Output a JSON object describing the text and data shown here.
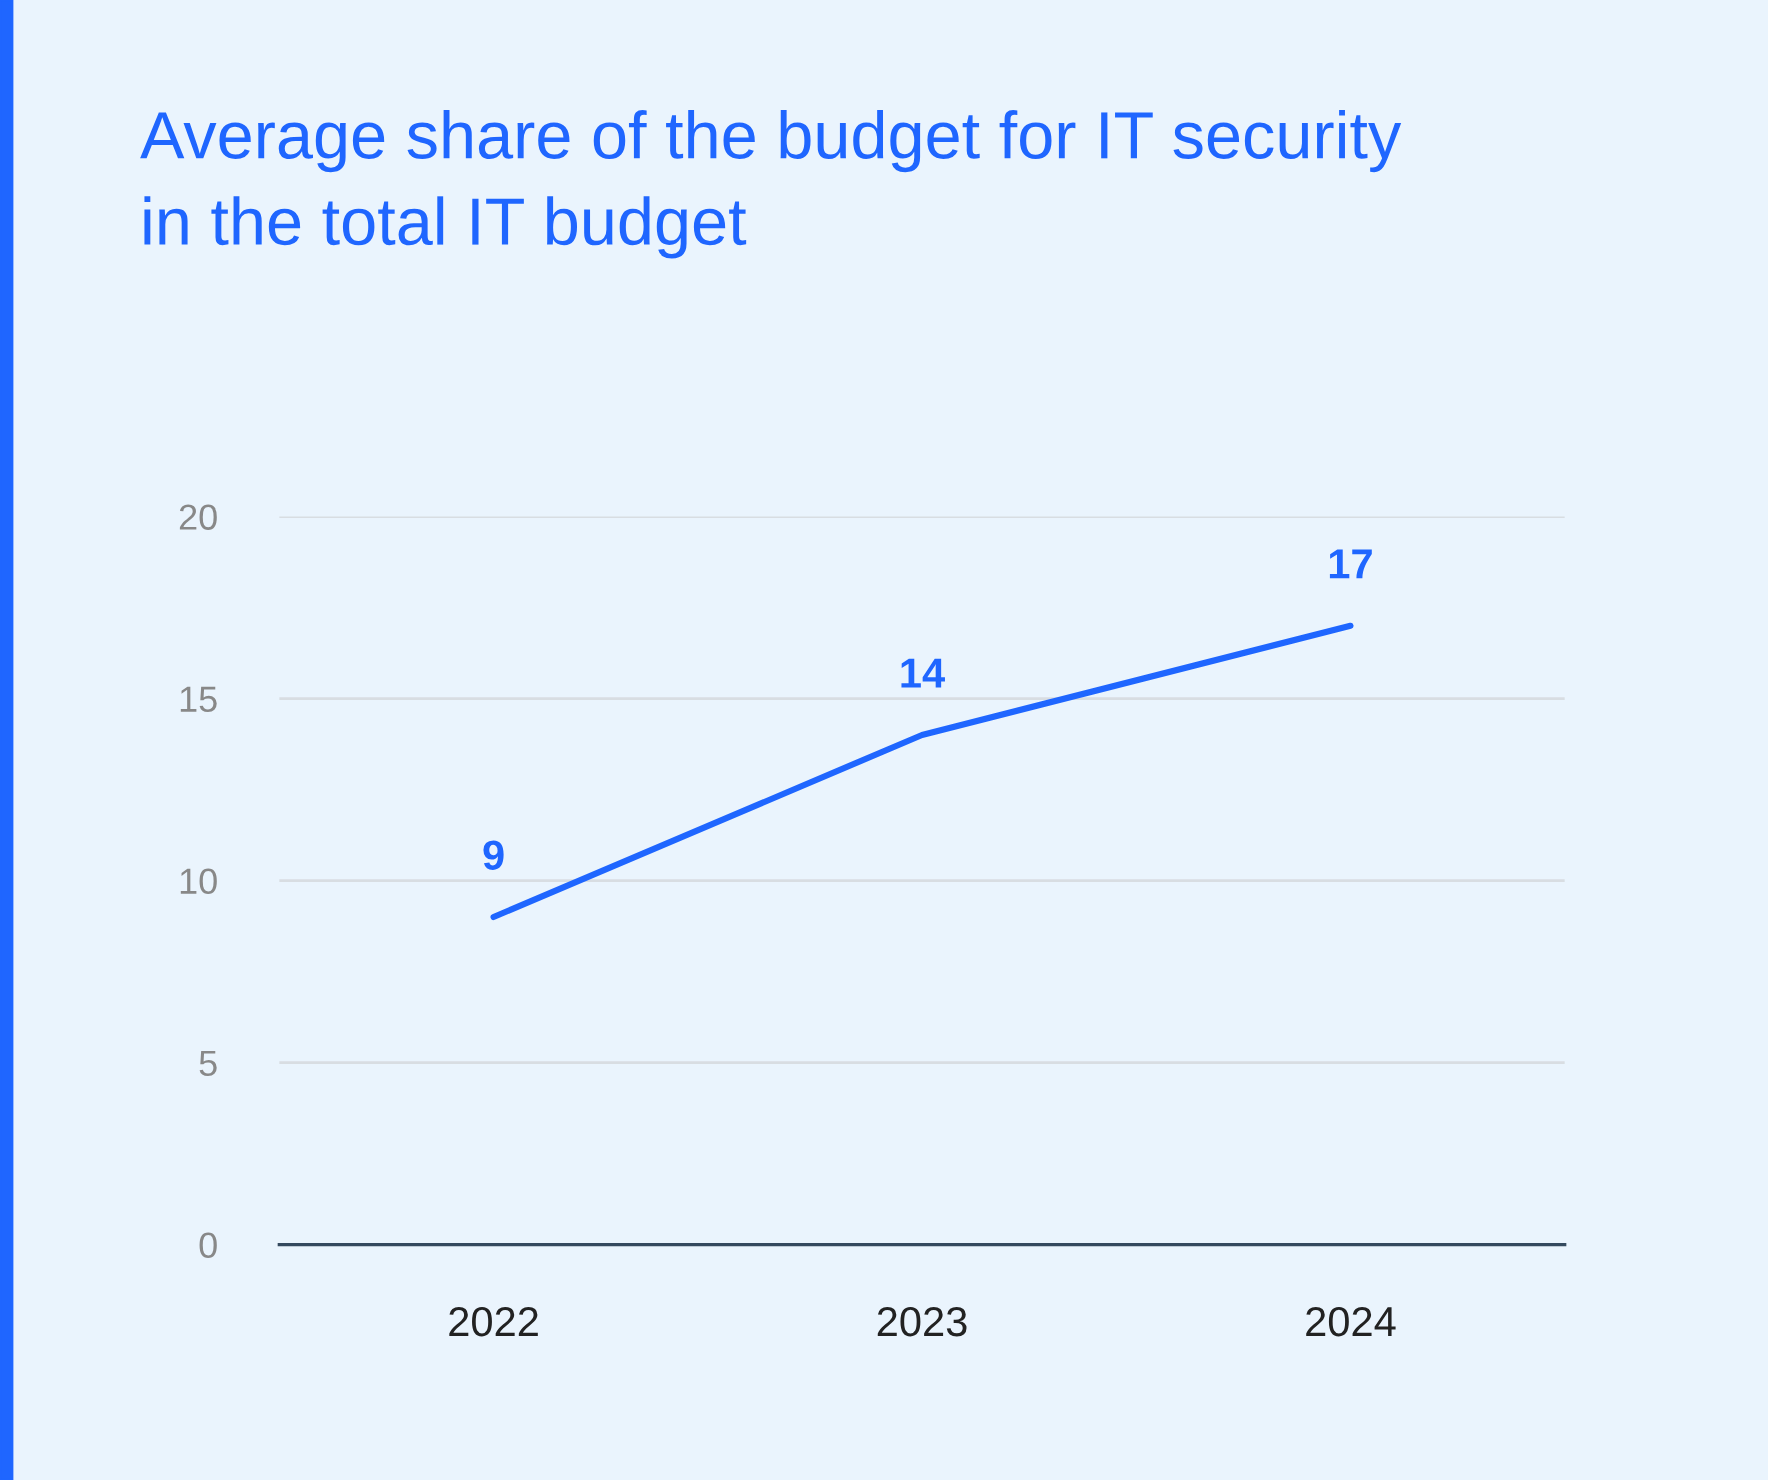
{
  "chart_data": {
    "type": "line",
    "title": "Average share of the budget for IT security\nin the total IT budget",
    "categories": [
      "2022",
      "2023",
      "2024"
    ],
    "series": [
      {
        "color": "#1f66ff",
        "values": [
          9,
          14,
          17
        ]
      }
    ],
    "ylim": [
      0,
      20
    ],
    "yticks": [
      0,
      5,
      10,
      15,
      20
    ],
    "grid": "y",
    "data_labels": true,
    "marker": "none",
    "line_style": "solid"
  }
}
